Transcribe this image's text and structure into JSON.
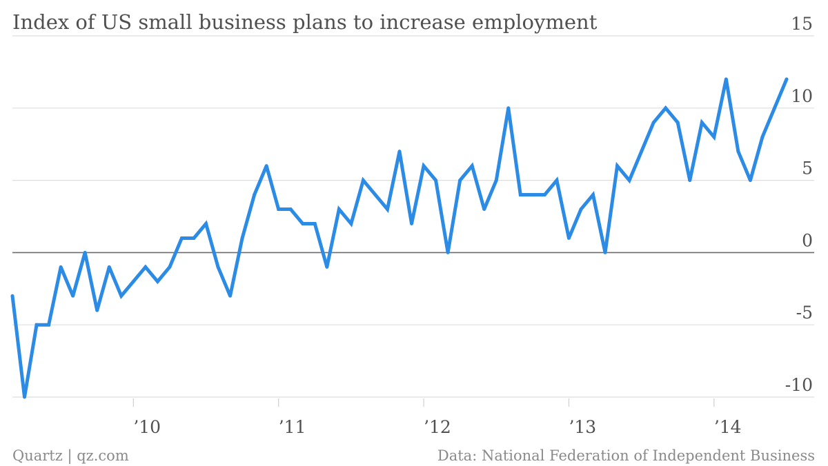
{
  "chart_data": {
    "type": "line",
    "title": "Index of US small business plans to increase employment",
    "xlabel": "",
    "ylabel": "",
    "x_start": "2009-03",
    "x_end": "2014-07",
    "x_ticks": [
      {
        "label": "’10",
        "date": "2010-01"
      },
      {
        "label": "’11",
        "date": "2011-01"
      },
      {
        "label": "’12",
        "date": "2012-01"
      },
      {
        "label": "’13",
        "date": "2013-01"
      },
      {
        "label": "’14",
        "date": "2014-01"
      }
    ],
    "y_ticks": [
      15,
      10,
      5,
      0,
      -5,
      -10
    ],
    "ylim": [
      -10,
      15
    ],
    "grid": true,
    "legend": "none",
    "line_color": "#2b8be5",
    "series": [
      {
        "values": [
          {
            "x": "2009-03",
            "y": -3
          },
          {
            "x": "2009-04",
            "y": -10
          },
          {
            "x": "2009-05",
            "y": -5
          },
          {
            "x": "2009-06",
            "y": -5
          },
          {
            "x": "2009-07",
            "y": -1
          },
          {
            "x": "2009-08",
            "y": -3
          },
          {
            "x": "2009-09",
            "y": 0
          },
          {
            "x": "2009-10",
            "y": -4
          },
          {
            "x": "2009-11",
            "y": -1
          },
          {
            "x": "2009-12",
            "y": -3
          },
          {
            "x": "2010-01",
            "y": -2
          },
          {
            "x": "2010-02",
            "y": -1
          },
          {
            "x": "2010-03",
            "y": -2
          },
          {
            "x": "2010-04",
            "y": -1
          },
          {
            "x": "2010-05",
            "y": 1
          },
          {
            "x": "2010-06",
            "y": 1
          },
          {
            "x": "2010-07",
            "y": 2
          },
          {
            "x": "2010-08",
            "y": -1
          },
          {
            "x": "2010-09",
            "y": -3
          },
          {
            "x": "2010-10",
            "y": 1
          },
          {
            "x": "2010-11",
            "y": 4
          },
          {
            "x": "2010-12",
            "y": 6
          },
          {
            "x": "2011-01",
            "y": 3
          },
          {
            "x": "2011-02",
            "y": 3
          },
          {
            "x": "2011-03",
            "y": 2
          },
          {
            "x": "2011-04",
            "y": 2
          },
          {
            "x": "2011-05",
            "y": -1
          },
          {
            "x": "2011-06",
            "y": 3
          },
          {
            "x": "2011-07",
            "y": 2
          },
          {
            "x": "2011-08",
            "y": 5
          },
          {
            "x": "2011-09",
            "y": 4
          },
          {
            "x": "2011-10",
            "y": 3
          },
          {
            "x": "2011-11",
            "y": 7
          },
          {
            "x": "2011-12",
            "y": 2
          },
          {
            "x": "2012-01",
            "y": 6
          },
          {
            "x": "2012-02",
            "y": 5
          },
          {
            "x": "2012-03",
            "y": 0
          },
          {
            "x": "2012-04",
            "y": 5
          },
          {
            "x": "2012-05",
            "y": 6
          },
          {
            "x": "2012-06",
            "y": 3
          },
          {
            "x": "2012-07",
            "y": 5
          },
          {
            "x": "2012-08",
            "y": 10
          },
          {
            "x": "2012-09",
            "y": 4
          },
          {
            "x": "2012-10",
            "y": 4
          },
          {
            "x": "2012-11",
            "y": 4
          },
          {
            "x": "2012-12",
            "y": 5
          },
          {
            "x": "2013-01",
            "y": 1
          },
          {
            "x": "2013-02",
            "y": 3
          },
          {
            "x": "2013-03",
            "y": 4
          },
          {
            "x": "2013-04",
            "y": 0
          },
          {
            "x": "2013-05",
            "y": 6
          },
          {
            "x": "2013-06",
            "y": 5
          },
          {
            "x": "2013-07",
            "y": 7
          },
          {
            "x": "2013-08",
            "y": 9
          },
          {
            "x": "2013-09",
            "y": 10
          },
          {
            "x": "2013-10",
            "y": 9
          },
          {
            "x": "2013-11",
            "y": 5
          },
          {
            "x": "2013-12",
            "y": 9
          },
          {
            "x": "2014-01",
            "y": 8
          },
          {
            "x": "2014-02",
            "y": 12
          },
          {
            "x": "2014-03",
            "y": 7
          },
          {
            "x": "2014-04",
            "y": 5
          },
          {
            "x": "2014-05",
            "y": 8
          },
          {
            "x": "2014-06",
            "y": 10
          },
          {
            "x": "2014-07",
            "y": 12
          }
        ]
      }
    ]
  },
  "footer": {
    "left": "Quartz | qz.com",
    "right": "Data: National Federation of Independent Business"
  }
}
